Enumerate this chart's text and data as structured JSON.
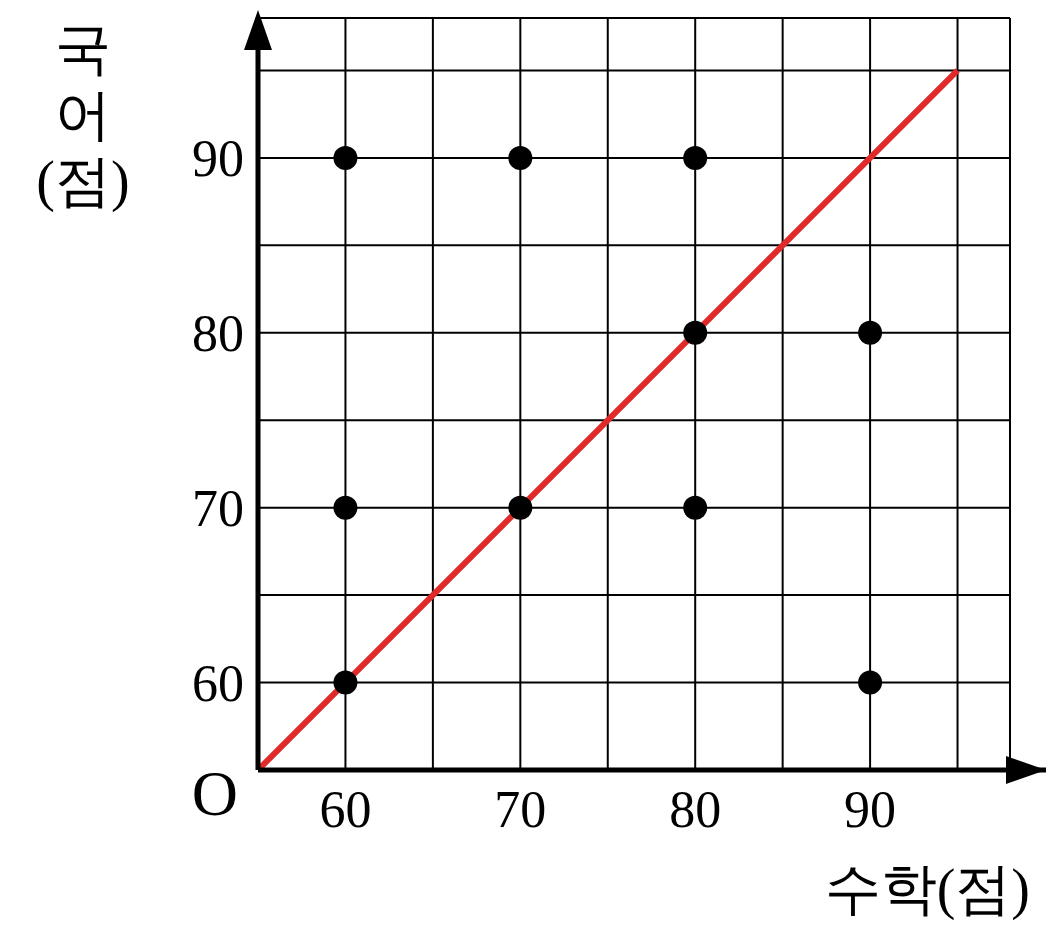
{
  "chart_data": {
    "type": "scatter",
    "xlabel": "수학(점)",
    "ylabel": "국어(점)",
    "xlim": [
      55,
      98
    ],
    "ylim": [
      55,
      98
    ],
    "xticks": [
      60,
      {
        "value": 65,
        "label": null
      },
      70,
      {
        "value": 75,
        "label": null
      },
      80,
      {
        "value": 85,
        "label": null
      },
      90,
      {
        "value": 95,
        "label": null
      }
    ],
    "yticks": [
      60,
      {
        "value": 65,
        "label": null
      },
      70,
      {
        "value": 75,
        "label": null
      },
      80,
      {
        "value": 85,
        "label": null
      },
      90,
      {
        "value": 95,
        "label": null
      }
    ],
    "grid": true,
    "marker": "circle",
    "annotations": [
      "O"
    ],
    "series": [
      {
        "color": "#000000",
        "x": [
          60,
          70,
          80,
          80,
          90,
          60,
          70,
          80,
          60,
          90
        ],
        "values": [
          90,
          90,
          90,
          80,
          80,
          70,
          70,
          70,
          60,
          60
        ]
      },
      {
        "type": "line",
        "color": "#e02a2a",
        "line_style": "solid",
        "marker": "none",
        "x": [
          55,
          95
        ],
        "values": [
          55,
          95
        ]
      }
    ]
  }
}
